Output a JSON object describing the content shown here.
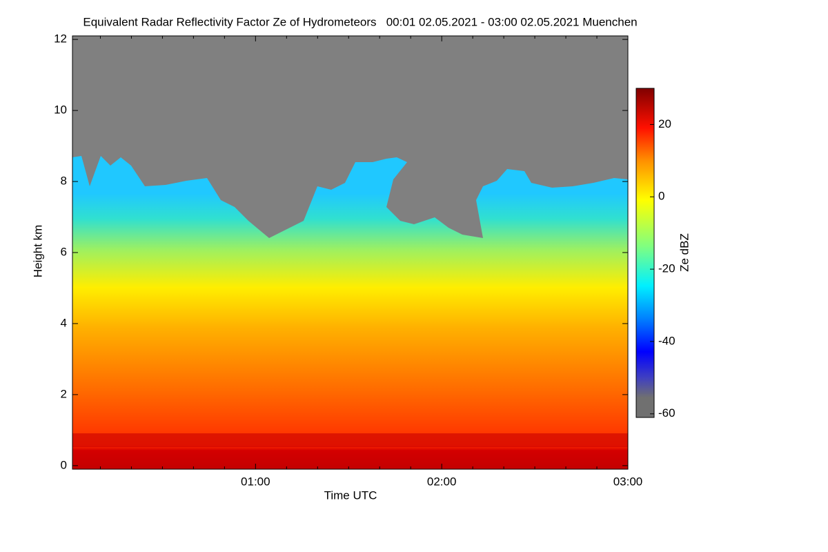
{
  "chart_data": {
    "type": "heatmap",
    "title": "Equivalent Radar Reflectivity Factor Ze of Hydrometeors   00:01 02.05.2021 - 03:00 02.05.2021 Muenchen",
    "xlabel": "Time UTC",
    "ylabel": "Height km",
    "colorbar_label": "Ze dBZ",
    "xlim": [
      1,
      180
    ],
    "xticks": [
      {
        "value": 60,
        "label": "01:00"
      },
      {
        "value": 120,
        "label": "02:00"
      },
      {
        "value": 180,
        "label": "03:00"
      }
    ],
    "xminorticks": [
      10,
      20,
      30,
      40,
      50,
      70,
      80,
      90,
      100,
      110,
      130,
      140,
      150,
      160,
      170
    ],
    "ylim": [
      -0.1,
      12.1
    ],
    "yticks": [
      0,
      2,
      4,
      6,
      8,
      10,
      12
    ],
    "clim": [
      -61,
      30
    ],
    "cticks": [
      -60,
      -40,
      -20,
      0,
      20
    ]
  }
}
